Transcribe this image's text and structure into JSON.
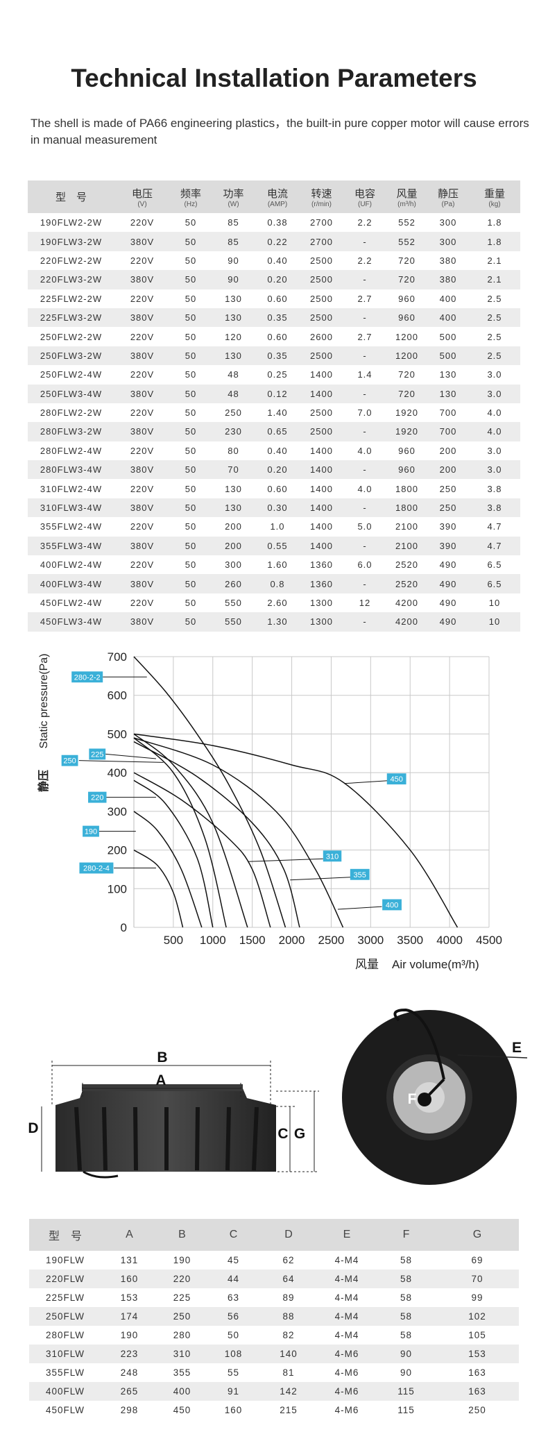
{
  "header": {
    "title": "Technical Installation Parameters",
    "subtitle": "The shell is made of PA66 engineering plastics，the built-in pure copper motor will cause errors in manual measurement"
  },
  "table": {
    "headers": [
      {
        "name": "型　号"
      },
      {
        "name": "电压",
        "unit": "(V)"
      },
      {
        "name": "频率",
        "unit": "(Hz)"
      },
      {
        "name": "功率",
        "unit": "(W)"
      },
      {
        "name": "电流",
        "unit": "(AMP)"
      },
      {
        "name": "转速",
        "unit": "(r/min)"
      },
      {
        "name": "电容",
        "unit": "(UF)"
      },
      {
        "name": "风量",
        "unit": "(m³/h)"
      },
      {
        "name": "静压",
        "unit": "(Pa)"
      },
      {
        "name": "重量",
        "unit": "(kg)"
      }
    ],
    "rows": [
      [
        "190FLW2-2W",
        "220V",
        "50",
        "85",
        "0.38",
        "2700",
        "2.2",
        "552",
        "300",
        "1.8"
      ],
      [
        "190FLW3-2W",
        "380V",
        "50",
        "85",
        "0.22",
        "2700",
        "-",
        "552",
        "300",
        "1.8"
      ],
      [
        "220FLW2-2W",
        "220V",
        "50",
        "90",
        "0.40",
        "2500",
        "2.2",
        "720",
        "380",
        "2.1"
      ],
      [
        "220FLW3-2W",
        "380V",
        "50",
        "90",
        "0.20",
        "2500",
        "-",
        "720",
        "380",
        "2.1"
      ],
      [
        "225FLW2-2W",
        "220V",
        "50",
        "130",
        "0.60",
        "2500",
        "2.7",
        "960",
        "400",
        "2.5"
      ],
      [
        "225FLW3-2W",
        "380V",
        "50",
        "130",
        "0.35",
        "2500",
        "-",
        "960",
        "400",
        "2.5"
      ],
      [
        "250FLW2-2W",
        "220V",
        "50",
        "120",
        "0.60",
        "2600",
        "2.7",
        "1200",
        "500",
        "2.5"
      ],
      [
        "250FLW3-2W",
        "380V",
        "50",
        "130",
        "0.35",
        "2500",
        "-",
        "1200",
        "500",
        "2.5"
      ],
      [
        "250FLW2-4W",
        "220V",
        "50",
        "48",
        "0.25",
        "1400",
        "1.4",
        "720",
        "130",
        "3.0"
      ],
      [
        "250FLW3-4W",
        "380V",
        "50",
        "48",
        "0.12",
        "1400",
        "-",
        "720",
        "130",
        "3.0"
      ],
      [
        "280FLW2-2W",
        "220V",
        "50",
        "250",
        "1.40",
        "2500",
        "7.0",
        "1920",
        "700",
        "4.0"
      ],
      [
        "280FLW3-2W",
        "380V",
        "50",
        "230",
        "0.65",
        "2500",
        "-",
        "1920",
        "700",
        "4.0"
      ],
      [
        "280FLW2-4W",
        "220V",
        "50",
        "80",
        "0.40",
        "1400",
        "4.0",
        "960",
        "200",
        "3.0"
      ],
      [
        "280FLW3-4W",
        "380V",
        "50",
        "70",
        "0.20",
        "1400",
        "-",
        "960",
        "200",
        "3.0"
      ],
      [
        "310FLW2-4W",
        "220V",
        "50",
        "130",
        "0.60",
        "1400",
        "4.0",
        "1800",
        "250",
        "3.8"
      ],
      [
        "310FLW3-4W",
        "380V",
        "50",
        "130",
        "0.30",
        "1400",
        "-",
        "1800",
        "250",
        "3.8"
      ],
      [
        "355FLW2-4W",
        "220V",
        "50",
        "200",
        "1.0",
        "1400",
        "5.0",
        "2100",
        "390",
        "4.7"
      ],
      [
        "355FLW3-4W",
        "380V",
        "50",
        "200",
        "0.55",
        "1400",
        "-",
        "2100",
        "390",
        "4.7"
      ],
      [
        "400FLW2-4W",
        "220V",
        "50",
        "300",
        "1.60",
        "1360",
        "6.0",
        "2520",
        "490",
        "6.5"
      ],
      [
        "400FLW3-4W",
        "380V",
        "50",
        "260",
        "0.8",
        "1360",
        "-",
        "2520",
        "490",
        "6.5"
      ],
      [
        "450FLW2-4W",
        "220V",
        "50",
        "550",
        "2.60",
        "1300",
        "12",
        "4200",
        "490",
        "10"
      ],
      [
        "450FLW3-4W",
        "380V",
        "50",
        "550",
        "1.30",
        "1300",
        "-",
        "4200",
        "490",
        "10"
      ]
    ]
  },
  "chart_data": {
    "type": "line",
    "ylabel": "Static pressure(Pa)",
    "ylabel_cn": "静压",
    "xlabel": "Air volume(m³/h)",
    "xlabel_cn": "风量",
    "xlim": [
      0,
      4500
    ],
    "xticks": [
      500,
      1000,
      1500,
      2000,
      2500,
      3000,
      3500,
      4000,
      4500
    ],
    "ylim": [
      0,
      700
    ],
    "yticks": [
      0,
      100,
      200,
      300,
      400,
      500,
      600,
      700
    ],
    "grid": true,
    "label_color": "#3ab0d8",
    "series": [
      {
        "name": "280-2-2",
        "color": "#111111",
        "x": [
          0,
          400,
          800,
          1200,
          1600,
          1920
        ],
        "values": [
          700,
          610,
          500,
          370,
          200,
          0
        ]
      },
      {
        "name": "225",
        "color": "#111111",
        "x": [
          0,
          500,
          900,
          1170
        ],
        "values": [
          490,
          400,
          230,
          0
        ]
      },
      {
        "name": "250",
        "color": "#111111",
        "x": [
          0,
          500,
          1000,
          1440
        ],
        "values": [
          500,
          420,
          270,
          0
        ]
      },
      {
        "name": "220",
        "color": "#111111",
        "x": [
          0,
          400,
          800,
          1000
        ],
        "values": [
          380,
          320,
          180,
          0
        ]
      },
      {
        "name": "190",
        "color": "#111111",
        "x": [
          0,
          300,
          600,
          860
        ],
        "values": [
          300,
          250,
          150,
          0
        ]
      },
      {
        "name": "280-2-4",
        "color": "#111111",
        "x": [
          0,
          300,
          500,
          620
        ],
        "values": [
          200,
          160,
          90,
          0
        ]
      },
      {
        "name": "450",
        "color": "#111111",
        "x": [
          0,
          1000,
          2000,
          2660,
          3500,
          4100
        ],
        "values": [
          500,
          470,
          420,
          374,
          200,
          0
        ]
      },
      {
        "name": "310",
        "color": "#111111",
        "x": [
          0,
          600,
          1200,
          1500,
          1730
        ],
        "values": [
          400,
          330,
          230,
          150,
          0
        ]
      },
      {
        "name": "355",
        "color": "#111111",
        "x": [
          0,
          800,
          1500,
          1900,
          2100
        ],
        "values": [
          480,
          390,
          270,
          150,
          0
        ]
      },
      {
        "name": "400",
        "color": "#111111",
        "x": [
          0,
          1000,
          1800,
          2300,
          2650
        ],
        "values": [
          490,
          420,
          300,
          150,
          0
        ]
      }
    ]
  },
  "diagram": {
    "labels": [
      "B",
      "A",
      "D",
      "C",
      "G",
      "E",
      "F"
    ]
  },
  "dims_table": {
    "headers": [
      "型　号",
      "A",
      "B",
      "C",
      "D",
      "E",
      "F",
      "G"
    ],
    "rows": [
      [
        "190FLW",
        "131",
        "190",
        "45",
        "62",
        "4-M4",
        "58",
        "69"
      ],
      [
        "220FLW",
        "160",
        "220",
        "44",
        "64",
        "4-M4",
        "58",
        "70"
      ],
      [
        "225FLW",
        "153",
        "225",
        "63",
        "89",
        "4-M4",
        "58",
        "99"
      ],
      [
        "250FLW",
        "174",
        "250",
        "56",
        "88",
        "4-M4",
        "58",
        "102"
      ],
      [
        "280FLW",
        "190",
        "280",
        "50",
        "82",
        "4-M4",
        "58",
        "105"
      ],
      [
        "310FLW",
        "223",
        "310",
        "108",
        "140",
        "4-M6",
        "90",
        "153"
      ],
      [
        "355FLW",
        "248",
        "355",
        "55",
        "81",
        "4-M6",
        "90",
        "163"
      ],
      [
        "400FLW",
        "265",
        "400",
        "91",
        "142",
        "4-M6",
        "115",
        "163"
      ],
      [
        "450FLW",
        "298",
        "450",
        "160",
        "215",
        "4-M6",
        "115",
        "250"
      ]
    ]
  }
}
